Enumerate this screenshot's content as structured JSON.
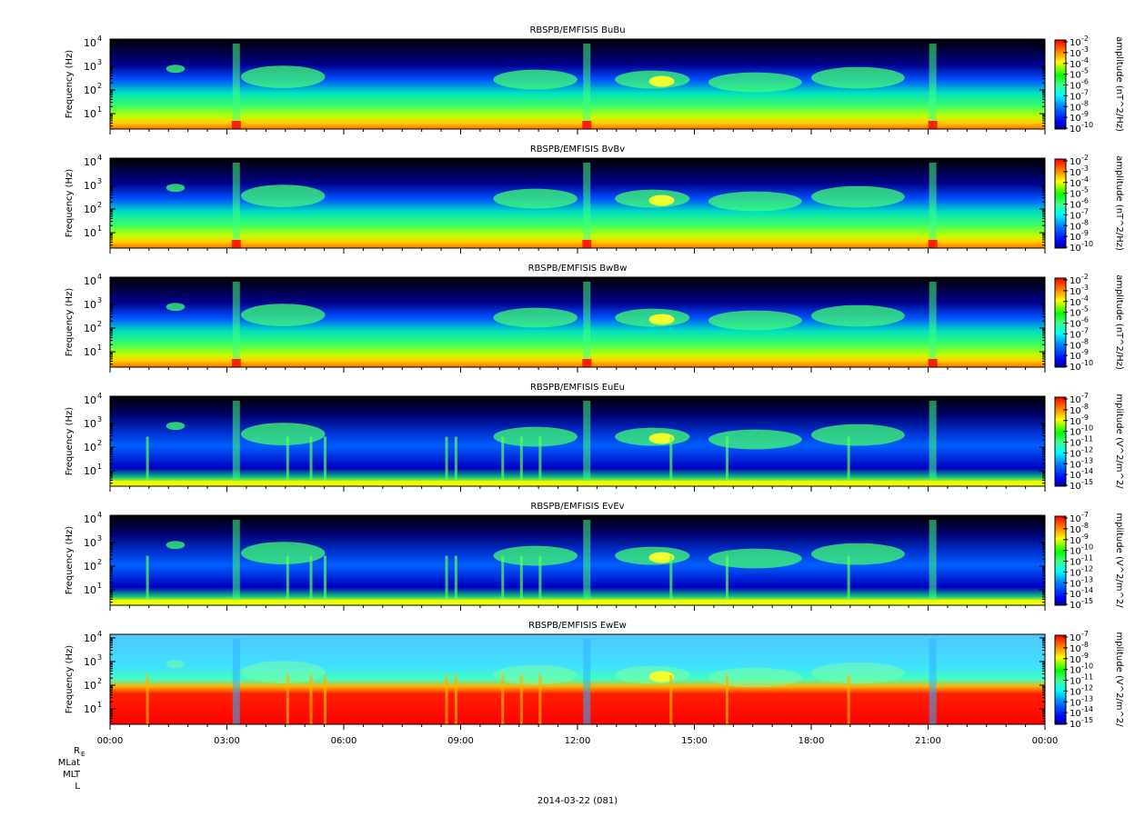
{
  "colors": {
    "background_fill": "#000000",
    "colormap": [
      "#00008f",
      "#0000ff",
      "#0080ff",
      "#00ffff",
      "#80ff80",
      "#00ff00",
      "#ffff00",
      "#ff8000",
      "#ff0000",
      "#800000"
    ]
  },
  "chart_data": [
    {
      "type": "heatmap",
      "title": "RBSPB/EMFISIS  BuBu",
      "ylabel": "Frequency (Hz)",
      "yscale": "log",
      "yticks": [
        "10",
        "10",
        "10",
        "10"
      ],
      "ytick_exponents": [
        "1",
        "2",
        "3",
        "4"
      ],
      "colorbar_label": "amplitude (nT^2/Hz)",
      "colorbar_scale": "log",
      "colorbar_ticks": [
        "10",
        "10",
        "10",
        "10",
        "10",
        "10",
        "10",
        "10",
        "10"
      ],
      "colorbar_tick_exponents": [
        "-2",
        "-3",
        "-4",
        "-5",
        "-6",
        "-7",
        "-8",
        "-9",
        "-10"
      ]
    },
    {
      "type": "heatmap",
      "title": "RBSPB/EMFISIS  BvBv",
      "ylabel": "Frequency (Hz)",
      "yscale": "log",
      "yticks": [
        "10",
        "10",
        "10",
        "10"
      ],
      "ytick_exponents": [
        "1",
        "2",
        "3",
        "4"
      ],
      "colorbar_label": "amplitude (nT^2/Hz)",
      "colorbar_scale": "log",
      "colorbar_ticks": [
        "10",
        "10",
        "10",
        "10",
        "10",
        "10",
        "10",
        "10",
        "10"
      ],
      "colorbar_tick_exponents": [
        "-2",
        "-3",
        "-4",
        "-5",
        "-6",
        "-7",
        "-8",
        "-9",
        "-10"
      ]
    },
    {
      "type": "heatmap",
      "title": "RBSPB/EMFISIS  BwBw",
      "ylabel": "Frequency (Hz)",
      "yscale": "log",
      "yticks": [
        "10",
        "10",
        "10",
        "10"
      ],
      "ytick_exponents": [
        "1",
        "2",
        "3",
        "4"
      ],
      "colorbar_label": "amplitude (nT^2/Hz)",
      "colorbar_scale": "log",
      "colorbar_ticks": [
        "10",
        "10",
        "10",
        "10",
        "10",
        "10",
        "10",
        "10",
        "10"
      ],
      "colorbar_tick_exponents": [
        "-2",
        "-3",
        "-4",
        "-5",
        "-6",
        "-7",
        "-8",
        "-9",
        "-10"
      ]
    },
    {
      "type": "heatmap",
      "title": "RBSPB/EMFISIS  EuEu",
      "ylabel": "Frequency (Hz)",
      "yscale": "log",
      "yticks": [
        "10",
        "10",
        "10",
        "10"
      ],
      "ytick_exponents": [
        "1",
        "2",
        "3",
        "4"
      ],
      "colorbar_label": "mplitude (V^2/m^2/",
      "colorbar_scale": "log",
      "colorbar_ticks": [
        "10",
        "10",
        "10",
        "10",
        "10",
        "10",
        "10",
        "10",
        "10"
      ],
      "colorbar_tick_exponents": [
        "-7",
        "-8",
        "-9",
        "-10",
        "-11",
        "-12",
        "-13",
        "-14",
        "-15"
      ]
    },
    {
      "type": "heatmap",
      "title": "RBSPB/EMFISIS  EvEv",
      "ylabel": "Frequency (Hz)",
      "yscale": "log",
      "yticks": [
        "10",
        "10",
        "10",
        "10"
      ],
      "ytick_exponents": [
        "1",
        "2",
        "3",
        "4"
      ],
      "colorbar_label": "mplitude (V^2/m^2/",
      "colorbar_scale": "log",
      "colorbar_ticks": [
        "10",
        "10",
        "10",
        "10",
        "10",
        "10",
        "10",
        "10",
        "10"
      ],
      "colorbar_tick_exponents": [
        "-7",
        "-8",
        "-9",
        "-10",
        "-11",
        "-12",
        "-13",
        "-14",
        "-15"
      ]
    },
    {
      "type": "heatmap",
      "title": "RBSPB/EMFISIS  EwEw",
      "ylabel": "Frequency (Hz)",
      "yscale": "log",
      "yticks": [
        "10",
        "10",
        "10",
        "10"
      ],
      "ytick_exponents": [
        "1",
        "2",
        "3",
        "4"
      ],
      "colorbar_label": "mplitude (V^2/m^2/",
      "colorbar_scale": "log",
      "colorbar_ticks": [
        "10",
        "10",
        "10",
        "10",
        "10",
        "10",
        "10",
        "10",
        "10"
      ],
      "colorbar_tick_exponents": [
        "-7",
        "-8",
        "-9",
        "-10",
        "-11",
        "-12",
        "-13",
        "-14",
        "-15"
      ]
    }
  ],
  "x_axis": {
    "ticks": [
      "00:00",
      "03:00",
      "06:00",
      "09:00",
      "12:00",
      "15:00",
      "18:00",
      "21:00",
      "00:00"
    ],
    "ephemeris_labels": [
      "R",
      "MLat",
      "MLT",
      "L"
    ],
    "ephemeris_label_subscript": "E",
    "date_label": "2014-03-22 (081)"
  }
}
